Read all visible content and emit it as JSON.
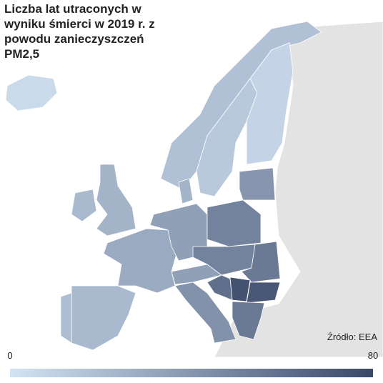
{
  "chart_data": {
    "type": "map",
    "title": "Liczba lat utraconych w wyniku śmierci w 2019 r. z powodu zanieczyszczeń PM2,5",
    "source": "Źródło: EEA",
    "clim": [
      0,
      80
    ],
    "colors": [
      "#d3e4f4",
      "#3a4868"
    ],
    "values": [
      5,
      18,
      14,
      8,
      25,
      22,
      30,
      22,
      20,
      35,
      25,
      50,
      50,
      35,
      40,
      55,
      42,
      60,
      75,
      72,
      55
    ]
  }
}
